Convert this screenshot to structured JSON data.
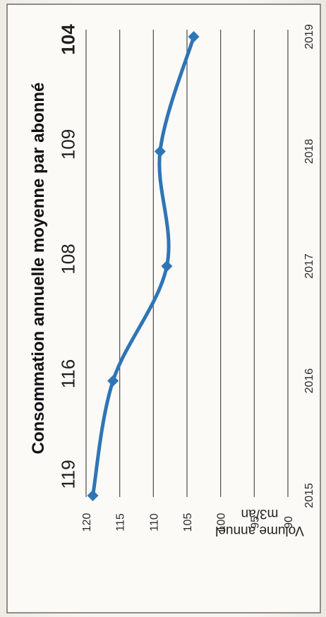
{
  "chart_data": {
    "type": "line",
    "title": "Consommation annuelle moyenne par abonné",
    "ylabel_lines": [
      "Volume annuel",
      "m3/an"
    ],
    "xlabel": "",
    "categories": [
      "2015",
      "2016",
      "2017",
      "2018",
      "2019"
    ],
    "series": [
      {
        "values": [
          119,
          116,
          108,
          109,
          104
        ]
      }
    ],
    "data_labels": [
      "119",
      "116",
      "108",
      "109",
      "104"
    ],
    "bold_label_index": 4,
    "ylim": [
      90,
      120
    ],
    "yticks": [
      "120",
      "115",
      "110",
      "105",
      "100",
      "95",
      "90"
    ],
    "grid": true,
    "orientation": "rotated 90° clockwise",
    "line_color": "#2e75b6",
    "marker": "diamond"
  }
}
